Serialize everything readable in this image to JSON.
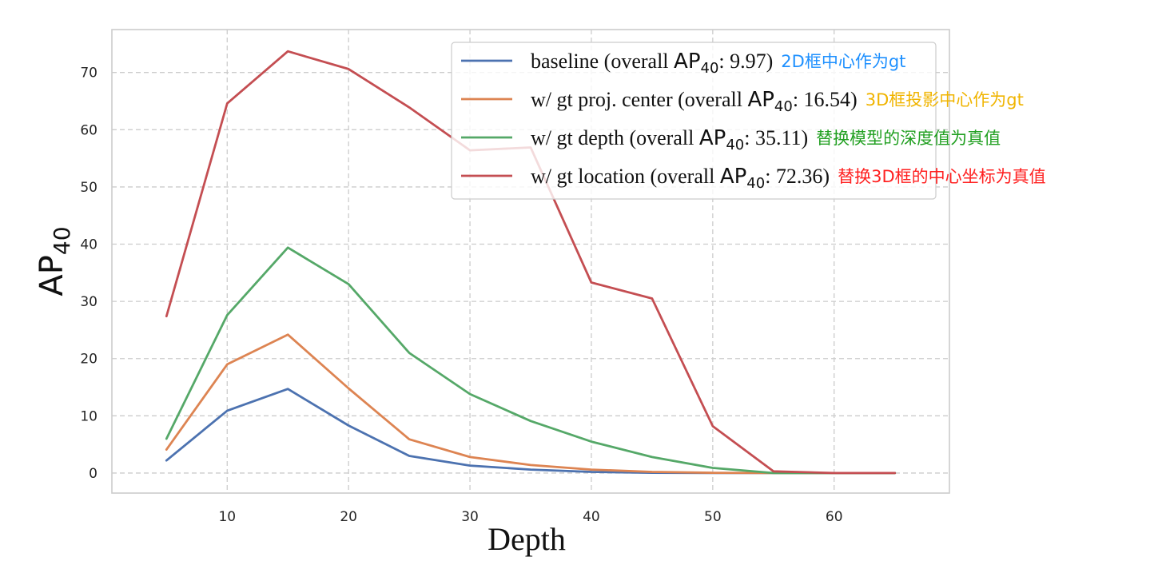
{
  "chart_data": {
    "type": "line",
    "title": "",
    "xlabel": "Depth",
    "ylabel": "AP",
    "ylabel_subscript": "40",
    "xlim": [
      0.5,
      69.5
    ],
    "ylim": [
      -3.5,
      77.5
    ],
    "x_ticks": [
      10,
      20,
      30,
      40,
      50,
      60
    ],
    "y_ticks": [
      0,
      10,
      20,
      30,
      40,
      50,
      60,
      70
    ],
    "grid": true,
    "legend_position": "top-right",
    "x": [
      5,
      10,
      15,
      20,
      25,
      30,
      35,
      40,
      45,
      50,
      55,
      60,
      65
    ],
    "series": [
      {
        "name": "baseline",
        "legend_prefix": "baseline (overall ",
        "legend_ap": "AP",
        "legend_sub": "40",
        "legend_suffix": ": 9.97)",
        "annotation": "2D框中心作为gt",
        "annotation_color": "#1E90FF",
        "color": "#4C72B0",
        "values": [
          2.2,
          10.9,
          14.7,
          8.3,
          3.0,
          1.3,
          0.6,
          0.2,
          0.05,
          0.0,
          0.0,
          0.0,
          0.0
        ]
      },
      {
        "name": "w/ gt proj. center",
        "legend_prefix": "w/ gt proj. center (overall ",
        "legend_ap": "AP",
        "legend_sub": "40",
        "legend_suffix": ": 16.54)",
        "annotation": "3D框投影中心作为gt",
        "annotation_color": "#F0B400",
        "color": "#DD8452",
        "values": [
          4.1,
          19.0,
          24.2,
          14.8,
          5.9,
          2.8,
          1.4,
          0.6,
          0.2,
          0.05,
          0.0,
          0.0,
          0.0
        ]
      },
      {
        "name": "w/ gt depth",
        "legend_prefix": "w/ gt depth (overall ",
        "legend_ap": "AP",
        "legend_sub": "40",
        "legend_suffix": ": 35.11)",
        "annotation": "替换模型的深度值为真值",
        "annotation_color": "#22A022",
        "color": "#55A868",
        "values": [
          6.0,
          27.6,
          39.4,
          33.0,
          21.0,
          13.8,
          9.1,
          5.5,
          2.8,
          0.9,
          0.0,
          0.0,
          0.0
        ]
      },
      {
        "name": "w/ gt location",
        "legend_prefix": "w/ gt location (overall ",
        "legend_ap": "AP",
        "legend_sub": "40",
        "legend_suffix": ": 72.36)",
        "annotation": "替换3D框的中心坐标为真值",
        "annotation_color": "#FF2020",
        "color": "#C44E52",
        "values": [
          27.4,
          64.6,
          73.7,
          70.6,
          63.9,
          56.4,
          56.9,
          33.3,
          30.5,
          8.2,
          0.3,
          0.0,
          0.0
        ]
      }
    ]
  }
}
